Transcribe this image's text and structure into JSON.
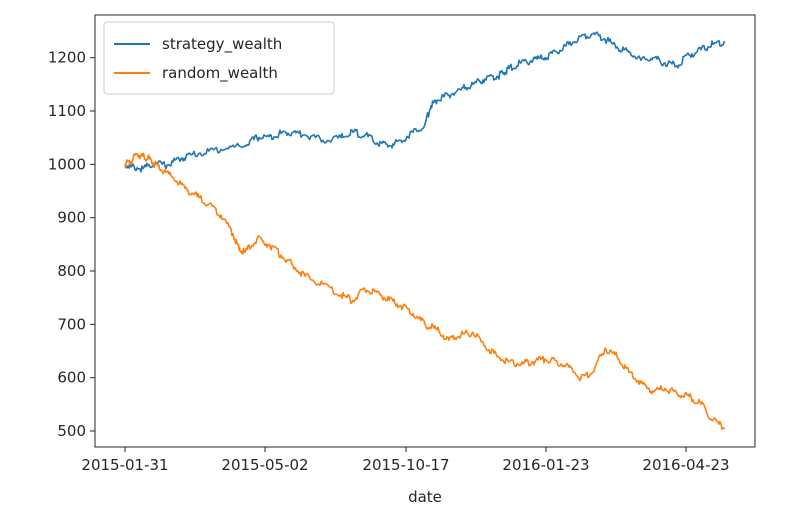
{
  "chart_data": {
    "type": "line",
    "title": "",
    "xlabel": "date",
    "ylabel": "",
    "x_tick_labels": [
      "2015-01-31",
      "2015-05-02",
      "2015-10-17",
      "2016-01-23",
      "2016-04-23"
    ],
    "y_ticks": [
      500,
      600,
      700,
      800,
      900,
      1000,
      1100,
      1200
    ],
    "ylim": [
      470,
      1280
    ],
    "grid": false,
    "legend_position": "top-left",
    "series": [
      {
        "name": "strategy_wealth",
        "color": "#1f77b4",
        "x": [
          0.0,
          0.01,
          0.03,
          0.05,
          0.07,
          0.09,
          0.11,
          0.14,
          0.17,
          0.2,
          0.22,
          0.24,
          0.26,
          0.28,
          0.3,
          0.33,
          0.36,
          0.38,
          0.4,
          0.42,
          0.44,
          0.46,
          0.48,
          0.5,
          0.51,
          0.52,
          0.54,
          0.56,
          0.58,
          0.6,
          0.62,
          0.63,
          0.64,
          0.66,
          0.68,
          0.7,
          0.72,
          0.74,
          0.76,
          0.78,
          0.8,
          0.82,
          0.84,
          0.86,
          0.88,
          0.9,
          0.92,
          0.94,
          0.96,
          0.98,
          1.0
        ],
        "y": [
          1000,
          995,
          992,
          1002,
          998,
          1010,
          1018,
          1025,
          1030,
          1035,
          1050,
          1052,
          1058,
          1060,
          1055,
          1045,
          1050,
          1060,
          1055,
          1040,
          1035,
          1045,
          1060,
          1075,
          1110,
          1120,
          1130,
          1140,
          1150,
          1160,
          1165,
          1170,
          1180,
          1190,
          1195,
          1200,
          1210,
          1225,
          1240,
          1245,
          1235,
          1220,
          1210,
          1195,
          1200,
          1190,
          1185,
          1205,
          1215,
          1225,
          1230
        ]
      },
      {
        "name": "random_wealth",
        "color": "#ff7f0e",
        "x": [
          0.0,
          0.01,
          0.02,
          0.03,
          0.04,
          0.05,
          0.06,
          0.08,
          0.1,
          0.12,
          0.14,
          0.16,
          0.18,
          0.19,
          0.2,
          0.22,
          0.24,
          0.26,
          0.28,
          0.3,
          0.33,
          0.36,
          0.38,
          0.4,
          0.42,
          0.44,
          0.46,
          0.48,
          0.5,
          0.52,
          0.54,
          0.56,
          0.58,
          0.6,
          0.62,
          0.64,
          0.66,
          0.68,
          0.7,
          0.72,
          0.74,
          0.76,
          0.78,
          0.8,
          0.82,
          0.84,
          0.86,
          0.88,
          0.9,
          0.92,
          0.94,
          0.96,
          0.98,
          1.0
        ],
        "y": [
          1000,
          1005,
          1020,
          1015,
          1010,
          1000,
          990,
          975,
          955,
          940,
          925,
          905,
          870,
          840,
          835,
          860,
          850,
          830,
          810,
          790,
          775,
          755,
          745,
          765,
          760,
          745,
          735,
          720,
          700,
          690,
          670,
          680,
          685,
          660,
          640,
          630,
          625,
          630,
          635,
          630,
          620,
          600,
          610,
          655,
          640,
          610,
          590,
          575,
          580,
          570,
          565,
          550,
          520,
          505
        ]
      }
    ]
  }
}
